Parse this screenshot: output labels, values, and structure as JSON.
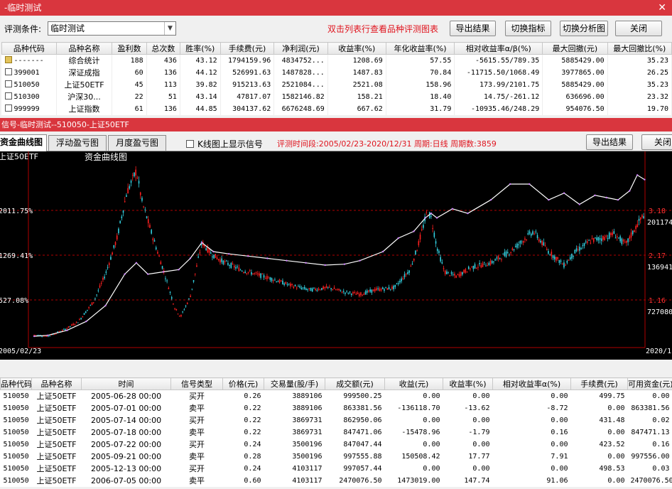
{
  "window": {
    "title": "-临时测试",
    "close_glyph": "✕"
  },
  "condition": {
    "label": "评测条件:",
    "value": "临时测试"
  },
  "hint": "双击列表行查看品种评测图表",
  "buttons": {
    "export": "导出结果",
    "switch_indicator": "切换指标",
    "switch_chart": "切换分析图",
    "close": "关闭"
  },
  "summary": {
    "headers": [
      "品种代码",
      "品种名称",
      "盈利数",
      "总次数",
      "胜率(%)",
      "手续费(元)",
      "净利润(元)",
      "收益率(%)",
      "年化收益率(%)",
      "相对收益率α/β(%)",
      "最大回撤(元)",
      "最大回撤比(%)"
    ],
    "rows": [
      {
        "code": "-------",
        "name": "综合统计",
        "win": "188",
        "total": "436",
        "rate": "43.12",
        "fee": "1794159.96",
        "profit": "4834752...",
        "ret": "1208.69",
        "annual": "57.55",
        "rel": "-5615.55/789.35",
        "dd": "5885429.00",
        "ddr": "35.23",
        "selected": true
      },
      {
        "code": "399001",
        "name": "深证成指",
        "win": "60",
        "total": "136",
        "rate": "44.12",
        "fee": "526991.63",
        "profit": "1487828...",
        "ret": "1487.83",
        "annual": "70.84",
        "rel": "-11715.50/1068.49",
        "dd": "3977865.00",
        "ddr": "26.25",
        "selected": false
      },
      {
        "code": "510050",
        "name": "上证50ETF",
        "win": "45",
        "total": "113",
        "rate": "39.82",
        "fee": "915213.63",
        "profit": "2521084...",
        "ret": "2521.08",
        "annual": "158.96",
        "rel": "173.99/2101.75",
        "dd": "5885429.00",
        "ddr": "35.23",
        "selected": false
      },
      {
        "code": "510300",
        "name": "沪深30...",
        "win": "22",
        "total": "51",
        "rate": "43.14",
        "fee": "47817.07",
        "profit": "1582146.82",
        "ret": "158.21",
        "annual": "18.40",
        "rel": "14.75/-261.12",
        "dd": "636696.00",
        "ddr": "23.32",
        "selected": false
      },
      {
        "code": "999999",
        "name": "上证指数",
        "win": "61",
        "total": "136",
        "rate": "44.85",
        "fee": "304137.62",
        "profit": "6676248.69",
        "ret": "667.62",
        "annual": "31.79",
        "rel": "-10935.46/248.29",
        "dd": "954076.50",
        "ddr": "19.70",
        "selected": false
      }
    ]
  },
  "subwindow": {
    "title": "信号-临时测试--510050-上证50ETF",
    "close_label": "关闭",
    "export_label": "导出结果"
  },
  "tabs": [
    "资金曲线图",
    "浮动盈亏图",
    "月度盈亏图"
  ],
  "show_signal_label": "K线图上显示信号",
  "period_info": "评测时间段:2005/02/23-2020/12/31  周期:日线  周期数:3859",
  "chart_data": {
    "type": "line",
    "title": "资金曲线图",
    "instrument_label": "上证50ETF",
    "left_axis_labels": [
      "2011.75%",
      "1269.41%",
      "527.08%"
    ],
    "right_axis_labels": [
      "3.18",
      "2.17",
      "1.16"
    ],
    "right_value_labels": [
      "201174",
      "136941",
      "727080"
    ],
    "x_start_label": "2005/02/23",
    "x_end_label": "2020/1",
    "colors": {
      "equity": "#ffffff",
      "candle_up": "#ff2020",
      "candle_down": "#33d0e0",
      "grid": "#b00000"
    },
    "price": {
      "x": [
        2005.15,
        2005.5,
        2005.9,
        2006.3,
        2006.7,
        2007.0,
        2007.3,
        2007.55,
        2007.8,
        2007.95,
        2008.2,
        2008.5,
        2008.8,
        2008.95,
        2009.2,
        2009.5,
        2009.75,
        2010.0,
        2010.5,
        2010.9,
        2011.3,
        2011.8,
        2012.3,
        2012.8,
        2013.2,
        2013.6,
        2014.0,
        2014.5,
        2014.9,
        2015.1,
        2015.35,
        2015.45,
        2015.6,
        2015.8,
        2016.1,
        2016.5,
        2017.0,
        2017.5,
        2017.9,
        2018.1,
        2018.5,
        2018.9,
        2019.2,
        2019.6,
        2019.9,
        2020.2,
        2020.5,
        2020.8,
        2020.99
      ],
      "y": [
        0.75,
        0.72,
        0.85,
        1.05,
        1.5,
        2.1,
        2.9,
        3.9,
        4.4,
        3.7,
        3.0,
        2.2,
        1.35,
        1.15,
        1.6,
        2.8,
        2.55,
        2.4,
        2.2,
        2.1,
        2.0,
        1.85,
        1.75,
        1.8,
        1.7,
        1.65,
        1.75,
        1.8,
        2.2,
        2.7,
        3.5,
        3.35,
        2.7,
        2.15,
        2.05,
        2.25,
        2.35,
        2.6,
        2.9,
        3.05,
        2.6,
        2.3,
        2.6,
        2.85,
        2.9,
        3.0,
        2.75,
        3.2,
        3.45
      ]
    },
    "equity": {
      "x": [
        2005.15,
        2005.5,
        2006.0,
        2006.5,
        2007.0,
        2007.5,
        2007.8,
        2008.1,
        2008.5,
        2008.9,
        2009.2,
        2009.5,
        2009.8,
        2010.2,
        2010.7,
        2011.2,
        2011.7,
        2012.2,
        2012.7,
        2013.2,
        2013.6,
        2014.2,
        2014.6,
        2015.0,
        2015.3,
        2015.45,
        2015.6,
        2016.0,
        2016.4,
        2017.0,
        2017.5,
        2018.0,
        2018.5,
        2018.9,
        2019.3,
        2019.7,
        2020.0,
        2020.3,
        2020.6,
        2020.8,
        2020.99
      ],
      "y": [
        0.72,
        0.74,
        0.85,
        1.05,
        1.4,
        2.1,
        2.35,
        2.1,
        2.15,
        2.2,
        2.45,
        2.8,
        2.6,
        2.55,
        2.5,
        2.45,
        2.4,
        2.35,
        2.3,
        2.32,
        2.4,
        2.6,
        2.9,
        3.05,
        3.35,
        3.45,
        3.35,
        3.55,
        3.45,
        3.75,
        4.1,
        4.1,
        3.75,
        3.9,
        3.65,
        3.85,
        3.8,
        3.75,
        3.95,
        4.3,
        4.2
      ]
    },
    "ylim": [
      0.5,
      4.7
    ],
    "xlim": [
      2005.0,
      2021.0
    ]
  },
  "details": {
    "headers": [
      "品种代码",
      "品种名称",
      "时间",
      "信号类型",
      "价格(元)",
      "交易量(股/手)",
      "成交额(元)",
      "收益(元)",
      "收益率(%)",
      "相对收益率α(%)",
      "手续费(元)",
      "可用资金(元)"
    ],
    "rows": [
      {
        "code": "510050",
        "name": "上证50ETF",
        "time": "2005-06-28 00:00",
        "type": "买开",
        "price": "0.26",
        "vol": "3889106",
        "amount": "999500.25",
        "profit": "0.00",
        "ret": "0.00",
        "rel": "0.00",
        "fee": "499.75",
        "cash": "0.00"
      },
      {
        "code": "510050",
        "name": "上证50ETF",
        "time": "2005-07-01 00:00",
        "type": "卖平",
        "price": "0.22",
        "vol": "3889106",
        "amount": "863381.56",
        "profit": "-136118.70",
        "ret": "-13.62",
        "rel": "-8.72",
        "fee": "0.00",
        "cash": "863381.56"
      },
      {
        "code": "510050",
        "name": "上证50ETF",
        "time": "2005-07-14 00:00",
        "type": "买开",
        "price": "0.22",
        "vol": "3869731",
        "amount": "862950.06",
        "profit": "0.00",
        "ret": "0.00",
        "rel": "0.00",
        "fee": "431.48",
        "cash": "0.02"
      },
      {
        "code": "510050",
        "name": "上证50ETF",
        "time": "2005-07-18 00:00",
        "type": "卖平",
        "price": "0.22",
        "vol": "3869731",
        "amount": "847471.06",
        "profit": "-15478.96",
        "ret": "-1.79",
        "rel": "0.16",
        "fee": "0.00",
        "cash": "847471.13"
      },
      {
        "code": "510050",
        "name": "上证50ETF",
        "time": "2005-07-22 00:00",
        "type": "买开",
        "price": "0.24",
        "vol": "3500196",
        "amount": "847047.44",
        "profit": "0.00",
        "ret": "0.00",
        "rel": "0.00",
        "fee": "423.52",
        "cash": "0.16"
      },
      {
        "code": "510050",
        "name": "上证50ETF",
        "time": "2005-09-21 00:00",
        "type": "卖平",
        "price": "0.28",
        "vol": "3500196",
        "amount": "997555.88",
        "profit": "150508.42",
        "ret": "17.77",
        "rel": "7.91",
        "fee": "0.00",
        "cash": "997556.00"
      },
      {
        "code": "510050",
        "name": "上证50ETF",
        "time": "2005-12-13 00:00",
        "type": "买开",
        "price": "0.24",
        "vol": "4103117",
        "amount": "997057.44",
        "profit": "0.00",
        "ret": "0.00",
        "rel": "0.00",
        "fee": "498.53",
        "cash": "0.03"
      },
      {
        "code": "510050",
        "name": "上证50ETF",
        "time": "2006-07-05 00:00",
        "type": "卖平",
        "price": "0.60",
        "vol": "4103117",
        "amount": "2470076.50",
        "profit": "1473019.00",
        "ret": "147.74",
        "rel": "91.06",
        "fee": "0.00",
        "cash": "2470076.50"
      }
    ]
  }
}
